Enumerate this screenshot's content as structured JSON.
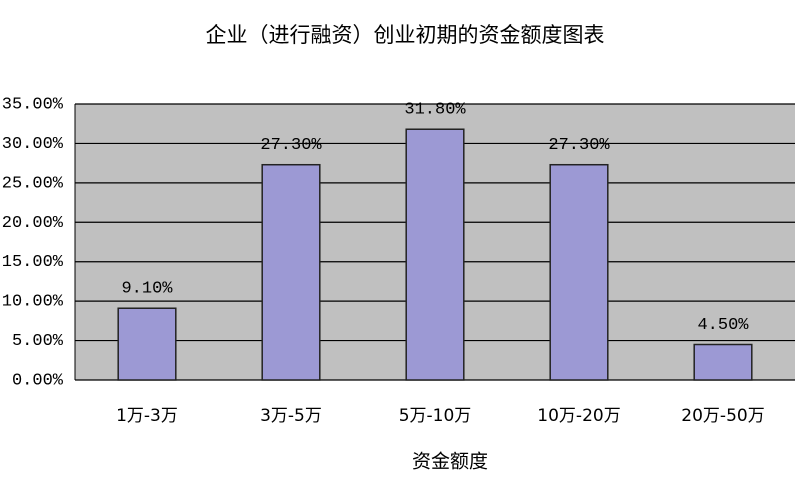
{
  "chart_data": {
    "type": "bar",
    "title": "企业（进行融资）创业初期的资金额度图表",
    "x_label": "资金额度",
    "categories": [
      "1万-3万",
      "3万-5万",
      "5万-10万",
      "10万-20万",
      "20万-50万"
    ],
    "values": [
      9.1,
      27.3,
      31.8,
      27.3,
      4.5
    ],
    "value_labels": [
      "9.10%",
      "27.30%",
      "31.80%",
      "27.30%",
      "4.50%"
    ],
    "color": "#9c99d4",
    "ylim": [
      0,
      35
    ],
    "yticks": [
      {
        "value": 0,
        "label": "0.00%"
      },
      {
        "value": 5,
        "label": "5.00%"
      },
      {
        "value": 10,
        "label": "10.00%"
      },
      {
        "value": 15,
        "label": "15.00%"
      },
      {
        "value": 20,
        "label": "20.00%"
      },
      {
        "value": 25,
        "label": "25.00%"
      },
      {
        "value": 30,
        "label": "30.00%"
      },
      {
        "value": 35,
        "label": "35.00%"
      }
    ],
    "grid": true
  }
}
